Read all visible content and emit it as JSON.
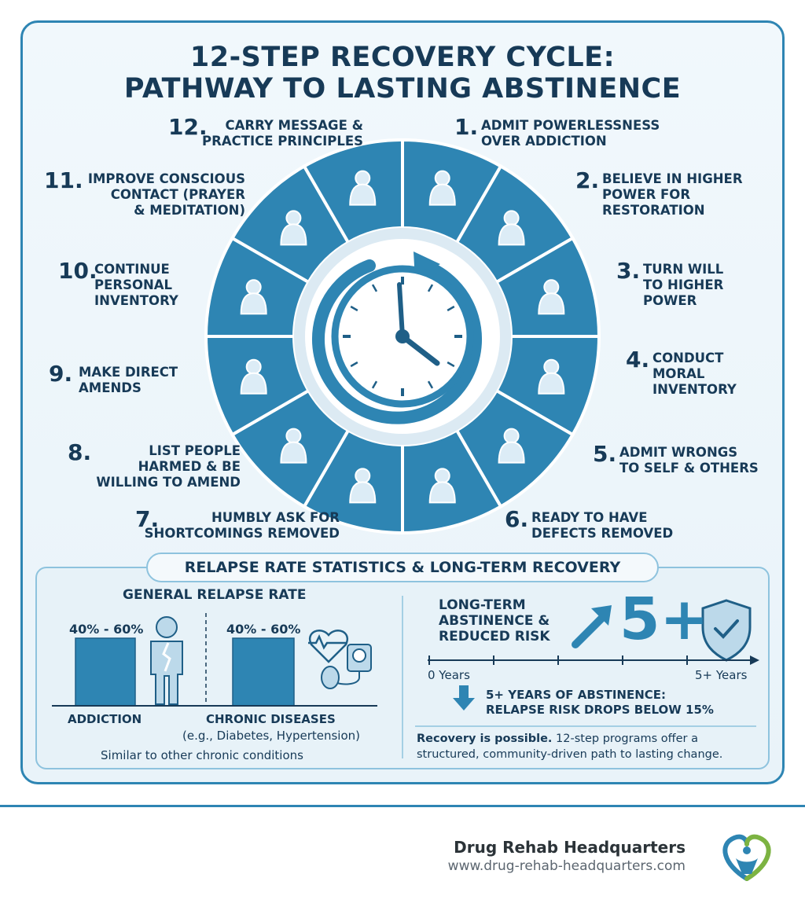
{
  "title": {
    "line1": "12-STEP RECOVERY CYCLE:",
    "line2": "PATHWAY TO LASTING ABSTINENCE"
  },
  "steps": [
    {
      "num": "1.",
      "text": "ADMIT POWERLESSNESS\nOVER ADDICTION",
      "icon": "broken-chain-icon"
    },
    {
      "num": "2.",
      "text": "BELIEVE IN HIGHER\nPOWER FOR\nRESTORATION",
      "icon": "raised-arms-person-icon"
    },
    {
      "num": "3.",
      "text": "TURN WILL\nTO HIGHER\nPOWER",
      "icon": "hands-holding-heart-icon"
    },
    {
      "num": "4.",
      "text": "CONDUCT\nMORAL\nINVENTORY",
      "icon": "book-magnifier-icon"
    },
    {
      "num": "5.",
      "text": "ADMIT WRONGS\nTO SELF & OTHERS",
      "icon": "two-people-talking-icon"
    },
    {
      "num": "6.",
      "text": "READY TO HAVE\nDEFECTS REMOVED",
      "icon": "person-shedding-icon"
    },
    {
      "num": "7.",
      "text": "HUMBLY ASK FOR\nSHORTCOMINGS REMOVED",
      "icon": "kneeling-person-icon"
    },
    {
      "num": "8.",
      "text": "LIST PEOPLE\nHARMED & BE\nWILLING TO AMEND",
      "icon": "list-quill-icon"
    },
    {
      "num": "9.",
      "text": "MAKE DIRECT\nAMENDS",
      "icon": "handshake-icon"
    },
    {
      "num": "10.",
      "text": "CONTINUE\nPERSONAL\nINVENTORY",
      "icon": "notebook-mirror-icon"
    },
    {
      "num": "11.",
      "text": "IMPROVE CONSCIOUS\nCONTACT (PRAYER\n& MEDITATION)",
      "icon": "meditation-icon"
    },
    {
      "num": "12.",
      "text": "CARRY MESSAGE &\nPRACTICE PRINCIPLES",
      "icon": "group-arrows-icon"
    }
  ],
  "stats": {
    "heading": "RELAPSE RATE STATISTICS & LONG-TERM RECOVERY",
    "general_title": "GENERAL RELAPSE RATE",
    "addiction_range": "40% - 60%",
    "chronic_range": "40% - 60%",
    "addiction_label": "ADDICTION",
    "chronic_label": "CHRONIC DISEASES",
    "chronic_sub": "(e.g., Diabetes, Hypertension)",
    "similar_note": "Similar to other chronic conditions",
    "longterm_title": "LONG-TERM\nABSTINENCE &\nREDUCED RISK",
    "big_number": "5+",
    "axis_start": "0 Years",
    "axis_end": "5+ Years",
    "drop_line1": "5+ YEARS OF ABSTINENCE:",
    "drop_line2": "RELAPSE RISK DROPS BELOW 15%",
    "recovery_bold": "Recovery is possible.",
    "recovery_rest": " 12-step programs offer a",
    "recovery_line2": "structured, community-driven path to lasting change."
  },
  "footer": {
    "brand": "Drug Rehab Headquarters",
    "url": "www.drug-rehab-headquarters.com"
  },
  "colors": {
    "primary": "#2e85b3",
    "dark": "#173a57",
    "light": "#e7f2f8"
  }
}
